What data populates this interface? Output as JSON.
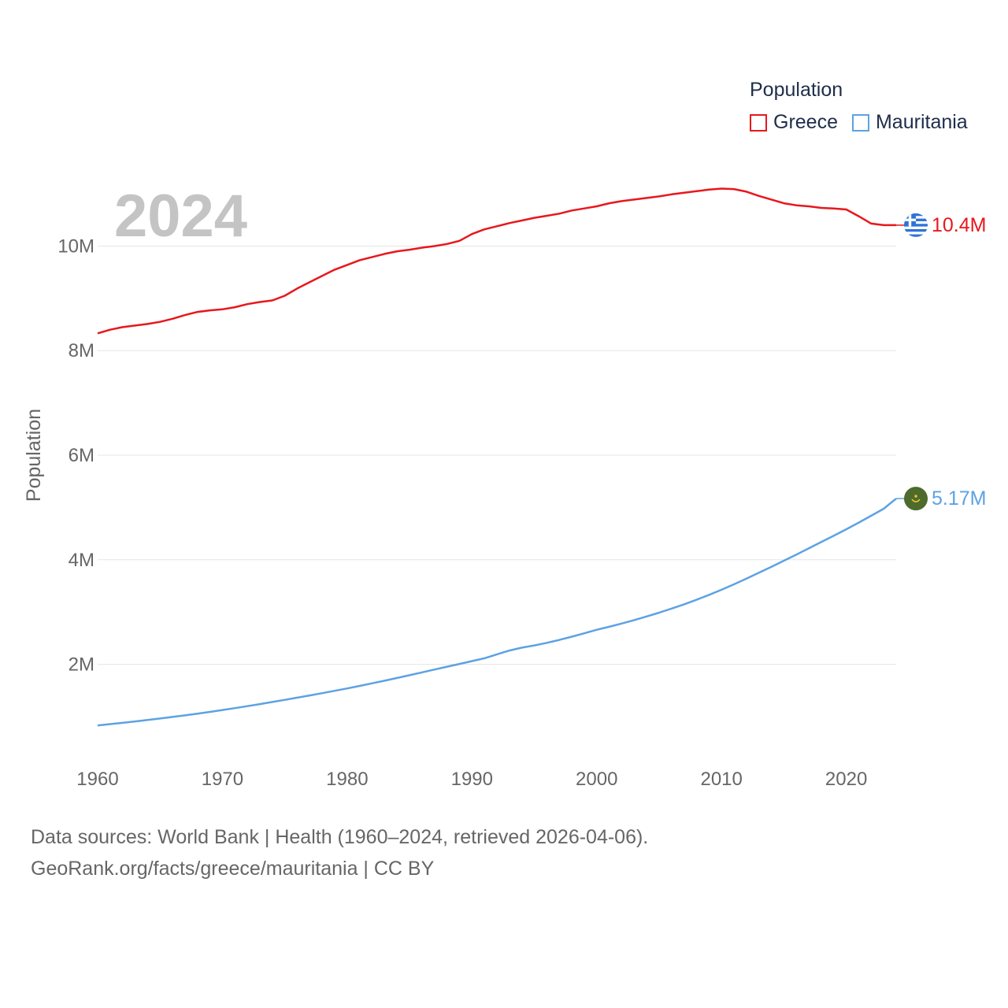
{
  "chart_data": {
    "type": "line",
    "ylabel": "Population",
    "current_year": "2024",
    "legend": {
      "title": "Population"
    },
    "x": [
      1960,
      1961,
      1962,
      1963,
      1964,
      1965,
      1966,
      1967,
      1968,
      1969,
      1970,
      1971,
      1972,
      1973,
      1974,
      1975,
      1976,
      1977,
      1978,
      1979,
      1980,
      1981,
      1982,
      1983,
      1984,
      1985,
      1986,
      1987,
      1988,
      1989,
      1990,
      1991,
      1992,
      1993,
      1994,
      1995,
      1996,
      1997,
      1998,
      1999,
      2000,
      2001,
      2002,
      2003,
      2004,
      2005,
      2006,
      2007,
      2008,
      2009,
      2010,
      2011,
      2012,
      2013,
      2014,
      2015,
      2016,
      2017,
      2018,
      2019,
      2020,
      2021,
      2022,
      2023,
      2024
    ],
    "xlim": [
      1960,
      2024
    ],
    "xticks": [
      {
        "value": 1960,
        "label": "1960"
      },
      {
        "value": 1970,
        "label": "1970"
      },
      {
        "value": 1980,
        "label": "1980"
      },
      {
        "value": 1990,
        "label": "1990"
      },
      {
        "value": 2000,
        "label": "2000"
      },
      {
        "value": 2010,
        "label": "2010"
      },
      {
        "value": 2020,
        "label": "2020"
      }
    ],
    "ylim": [
      200000,
      11800000
    ],
    "yticks": [
      {
        "value": 2000000,
        "label": "2M"
      },
      {
        "value": 4000000,
        "label": "4M"
      },
      {
        "value": 6000000,
        "label": "6M"
      },
      {
        "value": 8000000,
        "label": "8M"
      },
      {
        "value": 10000000,
        "label": "10M"
      }
    ],
    "series": [
      {
        "name": "Greece",
        "color": "#e8171d",
        "end_label": "10.4M",
        "flag_icon": "greece-flag-icon",
        "values": [
          8330000,
          8400000,
          8450000,
          8480000,
          8510000,
          8550000,
          8610000,
          8680000,
          8740000,
          8770000,
          8790000,
          8830000,
          8890000,
          8930000,
          8960000,
          9050000,
          9190000,
          9310000,
          9430000,
          9550000,
          9640000,
          9730000,
          9790000,
          9850000,
          9900000,
          9930000,
          9970000,
          10000000,
          10040000,
          10100000,
          10230000,
          10320000,
          10380000,
          10440000,
          10490000,
          10540000,
          10580000,
          10620000,
          10680000,
          10720000,
          10760000,
          10820000,
          10860000,
          10890000,
          10920000,
          10950000,
          10990000,
          11020000,
          11050000,
          11080000,
          11100000,
          11090000,
          11040000,
          10960000,
          10890000,
          10820000,
          10780000,
          10760000,
          10730000,
          10720000,
          10700000,
          10570000,
          10430000,
          10400000,
          10400000
        ]
      },
      {
        "name": "Mauritania",
        "color": "#5da2e3",
        "end_label": "5.17M",
        "flag_icon": "mauritania-flag-icon",
        "values": [
          830000,
          855000,
          880000,
          906000,
          933000,
          962000,
          992000,
          1023000,
          1055000,
          1089000,
          1125000,
          1161000,
          1199000,
          1238000,
          1278000,
          1319000,
          1361000,
          1403000,
          1447000,
          1492000,
          1538000,
          1586000,
          1635000,
          1686000,
          1738000,
          1791000,
          1845000,
          1899000,
          1953000,
          2006000,
          2060000,
          2115000,
          2190000,
          2262000,
          2318000,
          2361000,
          2410000,
          2466000,
          2527000,
          2592000,
          2660000,
          2718000,
          2779000,
          2845000,
          2914000,
          2987000,
          3065000,
          3147000,
          3234000,
          3327000,
          3426000,
          3530000,
          3640000,
          3752000,
          3866000,
          3982000,
          4099000,
          4218000,
          4338000,
          4460000,
          4583000,
          4710000,
          4841000,
          4975000,
          5170000
        ]
      }
    ]
  },
  "footer": {
    "sources": "Data sources: World Bank | Health (1960–2024, retrieved 2026-04-06).",
    "credit": "GeoRank.org/facts/greece/mauritania | CC BY"
  }
}
